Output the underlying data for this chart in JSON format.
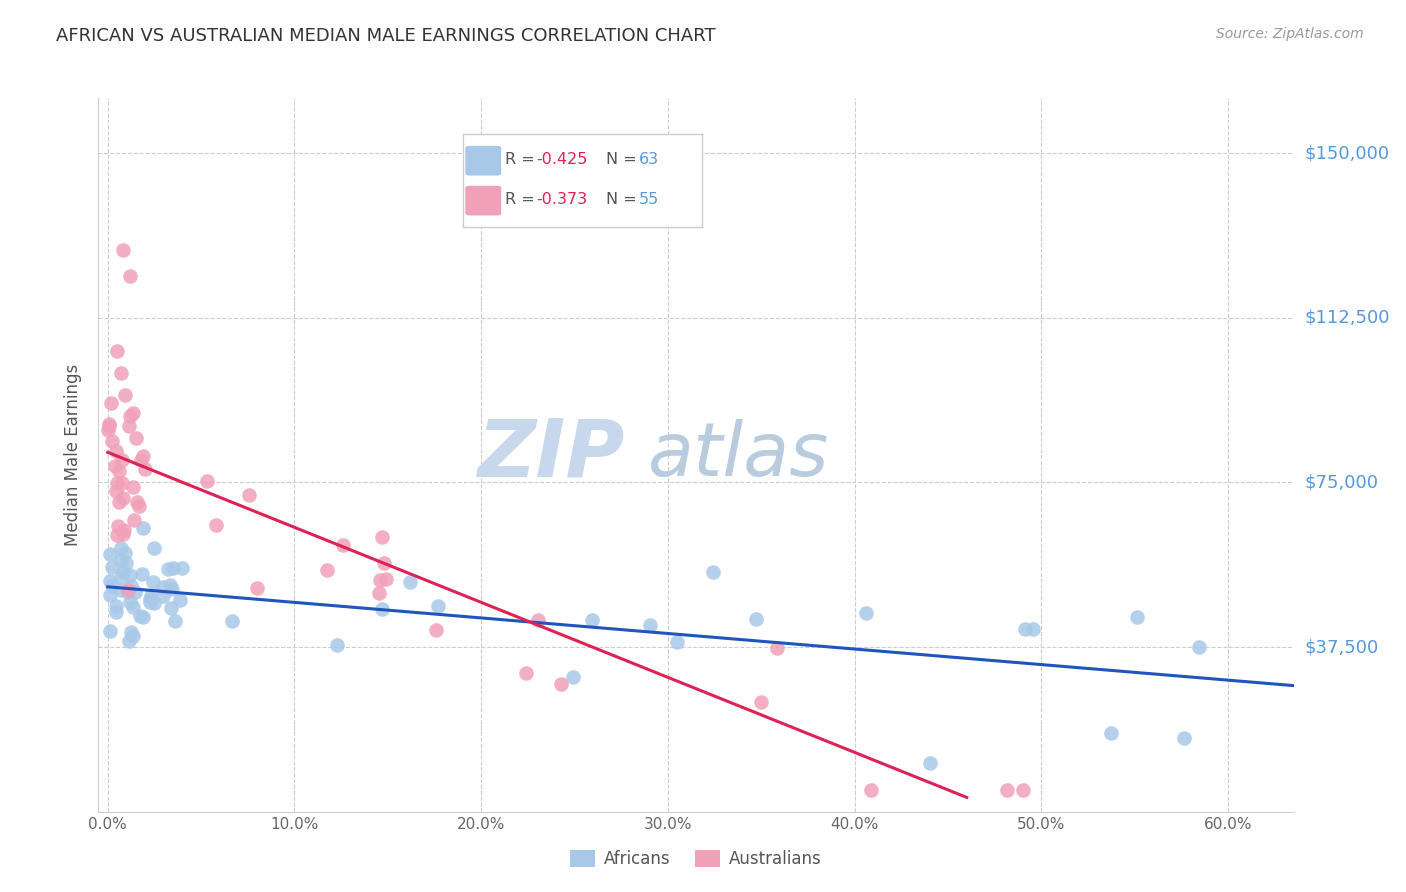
{
  "title": "AFRICAN VS AUSTRALIAN MEDIAN MALE EARNINGS CORRELATION CHART",
  "source": "Source: ZipAtlas.com",
  "ylabel": "Median Male Earnings",
  "xlabel_ticks": [
    "0.0%",
    "10.0%",
    "20.0%",
    "30.0%",
    "40.0%",
    "50.0%",
    "60.0%"
  ],
  "xlabel_vals": [
    0.0,
    0.1,
    0.2,
    0.3,
    0.4,
    0.5,
    0.6
  ],
  "ytick_labels": [
    "$37,500",
    "$75,000",
    "$112,500",
    "$150,000"
  ],
  "ytick_vals": [
    37500,
    75000,
    112500,
    150000
  ],
  "ylim": [
    0,
    162500
  ],
  "xlim": [
    -0.005,
    0.635
  ],
  "african_R": -0.425,
  "african_N": 63,
  "australian_R": -0.373,
  "australian_N": 55,
  "african_color": "#a8c8e8",
  "australian_color": "#f0a0b8",
  "african_line_color": "#2255bb",
  "australian_line_color": "#dd2255",
  "watermark_zip_color": "#c8d8ec",
  "watermark_atlas_color": "#b8ccdd",
  "background_color": "#ffffff",
  "grid_color": "#cccccc",
  "title_color": "#333333",
  "source_color": "#999999",
  "ylabel_color": "#555555",
  "xtick_color": "#666666",
  "ytick_right_color": "#5599dd",
  "legend_R_color": "#dd2255",
  "legend_N_color": "#5599dd",
  "legend_label_color": "#555555"
}
